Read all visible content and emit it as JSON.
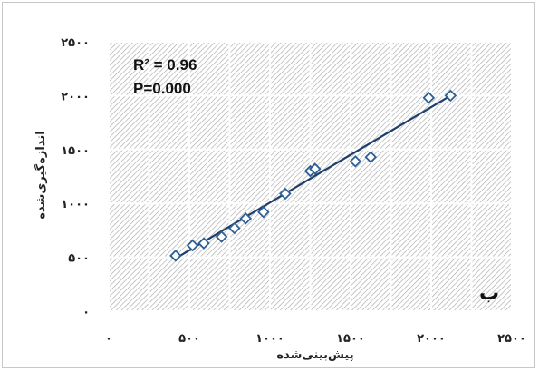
{
  "chart_data": {
    "type": "scatter",
    "title": "",
    "xlabel": "پیش‌بینی‌شده",
    "ylabel": "اندازه‌گیری‌شده",
    "xlim": [
      0,
      2500
    ],
    "ylim": [
      0,
      2500
    ],
    "x_ticks": [
      0,
      500,
      1000,
      1500,
      2000,
      2500
    ],
    "y_ticks": [
      0,
      500,
      1000,
      1500,
      2000,
      2500
    ],
    "x_tick_labels": [
      "۰",
      "۵۰۰",
      "۱۰۰۰",
      "۱۵۰۰",
      "۲۰۰۰",
      "۲۵۰۰"
    ],
    "y_tick_labels": [
      "۰",
      "۵۰۰",
      "۱۰۰۰",
      "۱۵۰۰",
      "۲۰۰۰",
      "۲۵۰۰"
    ],
    "grid": true,
    "points": [
      {
        "x": 415,
        "y": 515
      },
      {
        "x": 520,
        "y": 610
      },
      {
        "x": 590,
        "y": 630
      },
      {
        "x": 700,
        "y": 690
      },
      {
        "x": 780,
        "y": 770
      },
      {
        "x": 850,
        "y": 860
      },
      {
        "x": 960,
        "y": 920
      },
      {
        "x": 1095,
        "y": 1090
      },
      {
        "x": 1250,
        "y": 1300
      },
      {
        "x": 1280,
        "y": 1320
      },
      {
        "x": 1530,
        "y": 1390
      },
      {
        "x": 1625,
        "y": 1430
      },
      {
        "x": 1985,
        "y": 1980
      },
      {
        "x": 2120,
        "y": 2000
      }
    ],
    "trendline": {
      "x": [
        415,
        2120
      ],
      "y": [
        490,
        2000
      ]
    },
    "annotations": {
      "r_squared": "R² = 0.96",
      "p_value": "P=0.000",
      "panel_label": "ب"
    },
    "colors": {
      "marker": "#2e5f94",
      "trendline": "#1f3f6a",
      "hatch": "#a9a9a9"
    }
  }
}
